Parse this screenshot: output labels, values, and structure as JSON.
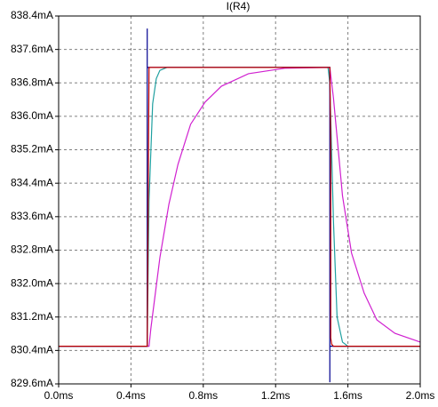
{
  "chart_data": {
    "type": "line",
    "title": "I(R4)",
    "title_color": "#0000c0",
    "xlim": [
      0,
      2.0
    ],
    "xticks": [
      {
        "value": 0,
        "label": "0.0ms"
      },
      {
        "value": 0.4,
        "label": "0.4ms"
      },
      {
        "value": 0.8,
        "label": "0.8ms"
      },
      {
        "value": 1.2,
        "label": "1.2ms"
      },
      {
        "value": 1.6,
        "label": "1.6ms"
      },
      {
        "value": 2.0,
        "label": "2.0ms"
      }
    ],
    "ylim": [
      829.6,
      838.4
    ],
    "yticks": [
      {
        "value": 829.6,
        "label": "829.6mA"
      },
      {
        "value": 830.4,
        "label": "830.4mA"
      },
      {
        "value": 831.2,
        "label": "831.2mA"
      },
      {
        "value": 832.0,
        "label": "832.0mA"
      },
      {
        "value": 832.8,
        "label": "832.8mA"
      },
      {
        "value": 833.6,
        "label": "833.6mA"
      },
      {
        "value": 834.4,
        "label": "834.4mA"
      },
      {
        "value": 835.2,
        "label": "835.2mA"
      },
      {
        "value": 836.0,
        "label": "836.0mA"
      },
      {
        "value": 836.8,
        "label": "836.8mA"
      },
      {
        "value": 837.6,
        "label": "837.6mA"
      },
      {
        "value": 838.4,
        "label": "838.4mA"
      }
    ],
    "grid": true,
    "series": [
      {
        "color": "#d020d0",
        "x": [
          0,
          0.5,
          0.51,
          0.56,
          0.61,
          0.66,
          0.73,
          0.81,
          0.9,
          1.05,
          1.25,
          1.5,
          1.52,
          1.57,
          1.62,
          1.69,
          1.76,
          1.86,
          2.0
        ],
        "values": [
          830.5,
          830.5,
          830.92,
          832.62,
          833.9,
          834.85,
          835.81,
          836.34,
          836.72,
          837.02,
          837.15,
          837.17,
          836.44,
          834.1,
          832.73,
          831.77,
          831.13,
          830.81,
          830.6
        ]
      },
      {
        "color": "#20a0a0",
        "x": [
          0,
          0.49,
          0.5,
          0.52,
          0.54,
          0.56,
          0.6,
          1.49,
          1.5,
          1.52,
          1.54,
          1.57,
          1.6,
          2.0
        ],
        "values": [
          830.5,
          830.5,
          834.0,
          836.3,
          836.9,
          837.1,
          837.17,
          837.17,
          836.8,
          833.5,
          831.2,
          830.6,
          830.5,
          830.5
        ]
      },
      {
        "color": "#000090",
        "x": [
          0,
          0.49,
          0.49,
          0.49,
          1.5,
          1.5,
          1.5,
          2.0
        ],
        "values": [
          830.5,
          830.5,
          838.1,
          837.17,
          837.17,
          829.64,
          830.5,
          830.5
        ]
      },
      {
        "color": "#c00000",
        "x": [
          0,
          0.49,
          0.5,
          1.5,
          1.505,
          1.505,
          1.51,
          1.52,
          2.0
        ],
        "values": [
          830.5,
          830.5,
          837.17,
          837.17,
          835.38,
          830.7,
          830.55,
          830.5,
          830.5
        ]
      }
    ]
  }
}
